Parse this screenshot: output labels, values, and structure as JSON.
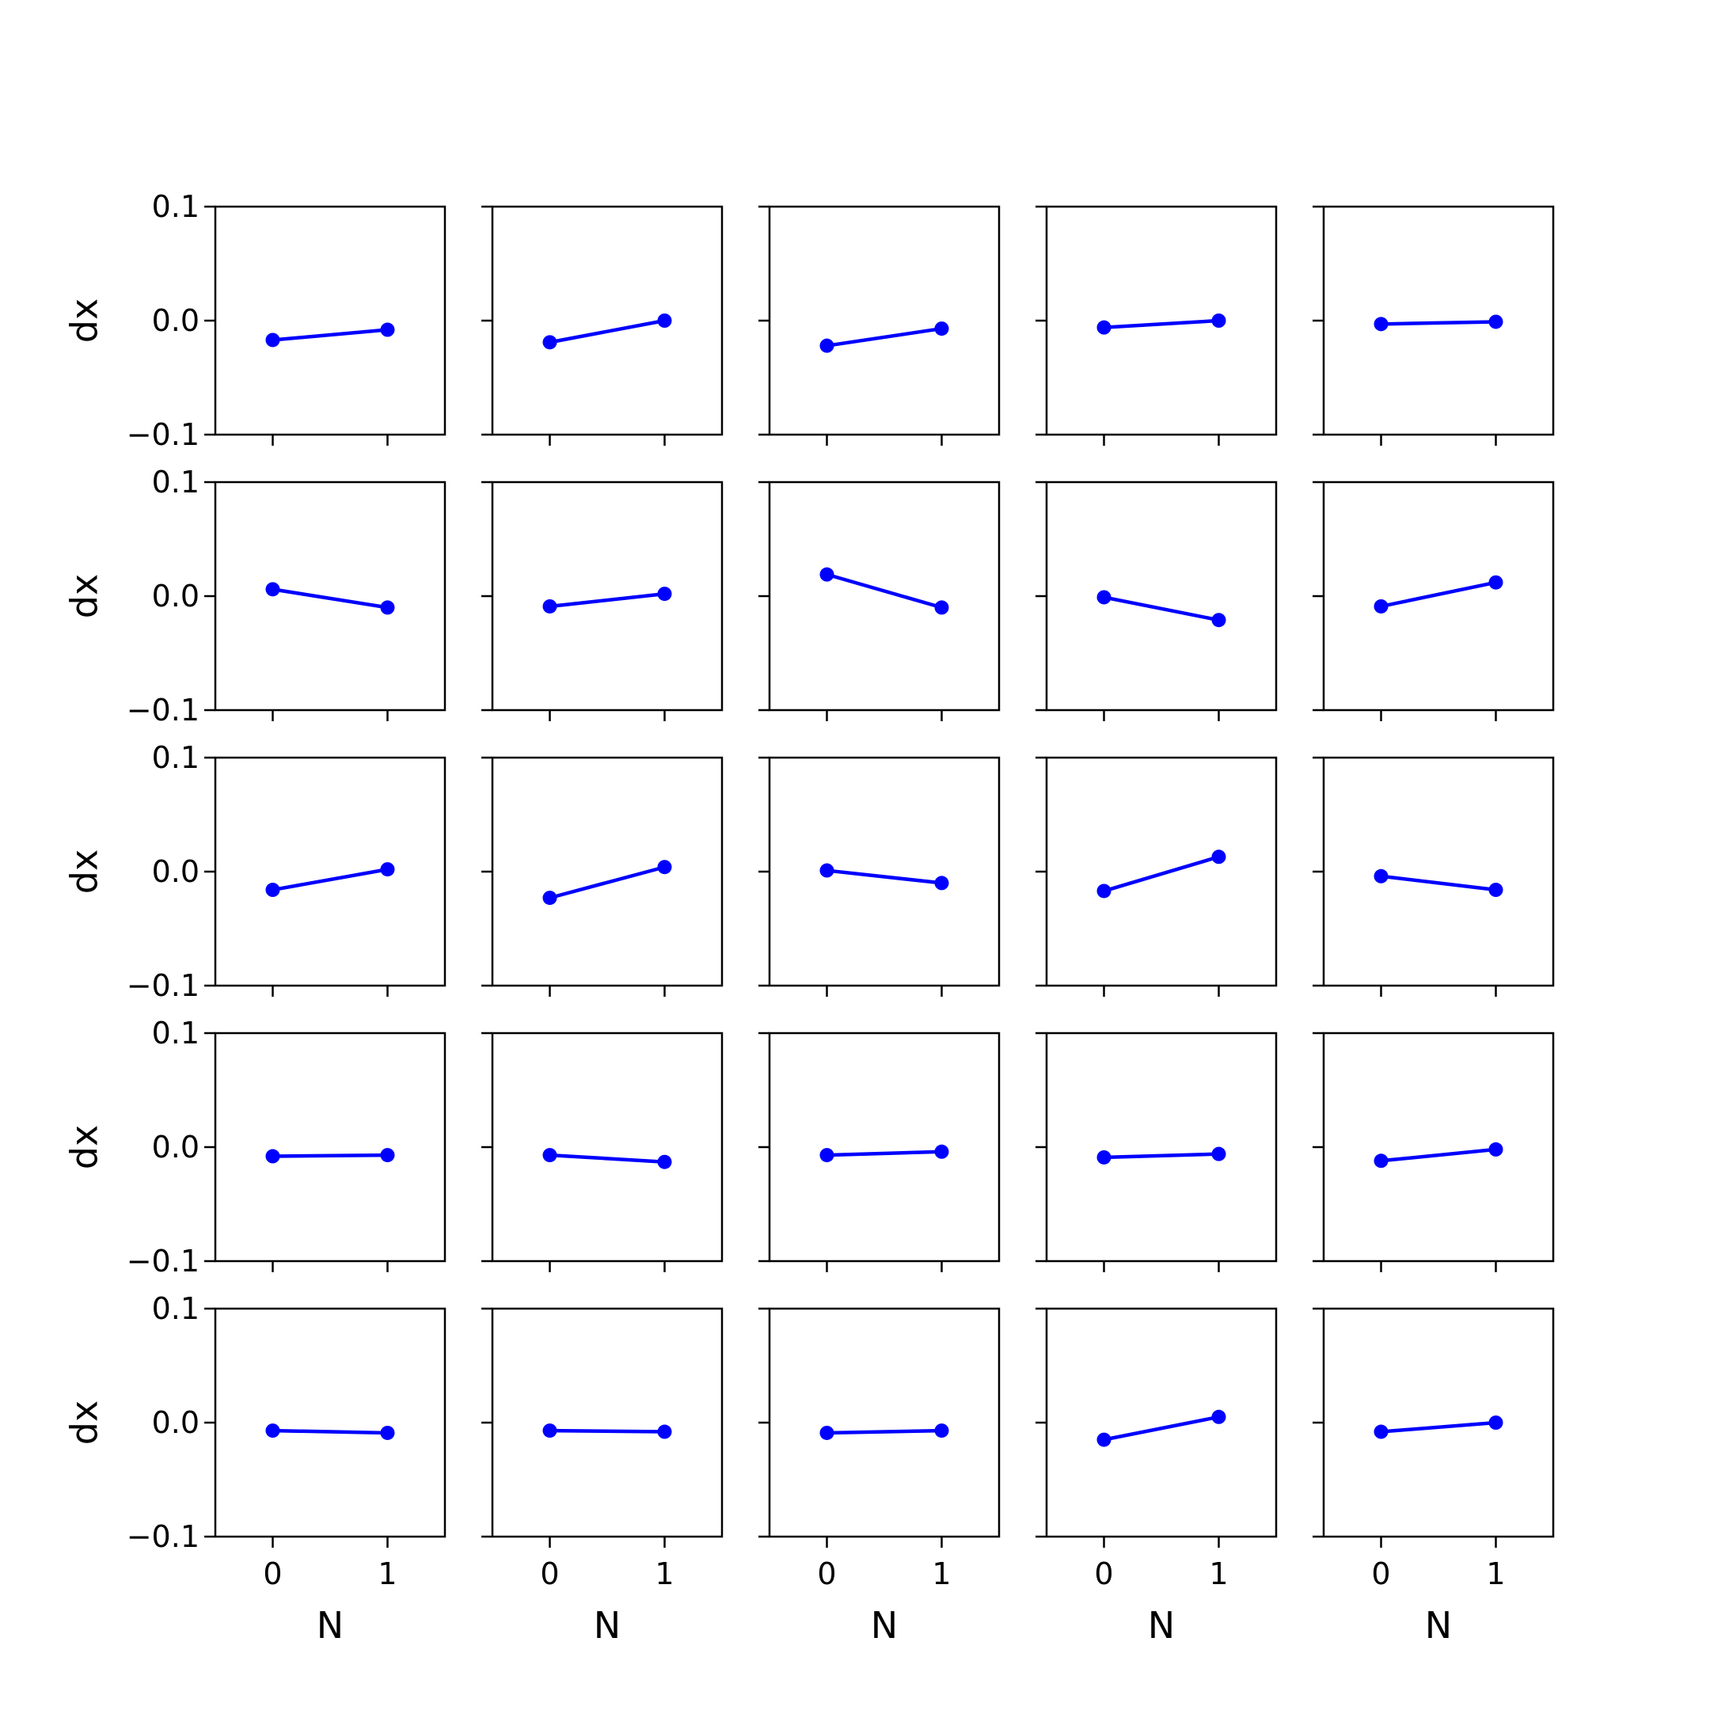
{
  "colors": {
    "series": "#0000ff",
    "axes": "#000000",
    "background": "#ffffff"
  },
  "chart_data": {
    "type": "line",
    "layout": "grid 5 rows x 5 columns",
    "shared_axes": {
      "x": [
        0,
        1
      ],
      "xlim": [
        -0.5,
        1.5
      ],
      "ylim": [
        -0.1,
        0.1
      ],
      "xticks": [
        "0",
        "1"
      ],
      "yticks": [
        "0.1",
        "0.0",
        "−0.1"
      ],
      "ylabel": "dx",
      "xlabel": "N",
      "grid": false,
      "markers": true
    },
    "panels": [
      [
        {
          "values": [
            -0.017,
            -0.008
          ]
        },
        {
          "values": [
            -0.019,
            0.0
          ]
        },
        {
          "values": [
            -0.022,
            -0.007
          ]
        },
        {
          "values": [
            -0.006,
            0.0
          ]
        },
        {
          "values": [
            -0.003,
            -0.001
          ]
        }
      ],
      [
        {
          "values": [
            0.006,
            -0.01
          ]
        },
        {
          "values": [
            -0.009,
            0.002
          ]
        },
        {
          "values": [
            0.019,
            -0.01
          ]
        },
        {
          "values": [
            -0.001,
            -0.021
          ]
        },
        {
          "values": [
            -0.009,
            0.012
          ]
        }
      ],
      [
        {
          "values": [
            -0.016,
            0.002
          ]
        },
        {
          "values": [
            -0.023,
            0.004
          ]
        },
        {
          "values": [
            0.001,
            -0.01
          ]
        },
        {
          "values": [
            -0.017,
            0.013
          ]
        },
        {
          "values": [
            -0.004,
            -0.016
          ]
        }
      ],
      [
        {
          "values": [
            -0.008,
            -0.007
          ]
        },
        {
          "values": [
            -0.007,
            -0.013
          ]
        },
        {
          "values": [
            -0.007,
            -0.004
          ]
        },
        {
          "values": [
            -0.009,
            -0.006
          ]
        },
        {
          "values": [
            -0.012,
            -0.002
          ]
        }
      ],
      [
        {
          "values": [
            -0.007,
            -0.009
          ]
        },
        {
          "values": [
            -0.007,
            -0.008
          ]
        },
        {
          "values": [
            -0.009,
            -0.007
          ]
        },
        {
          "values": [
            -0.015,
            0.005
          ]
        },
        {
          "values": [
            -0.008,
            0.0
          ]
        }
      ]
    ]
  }
}
